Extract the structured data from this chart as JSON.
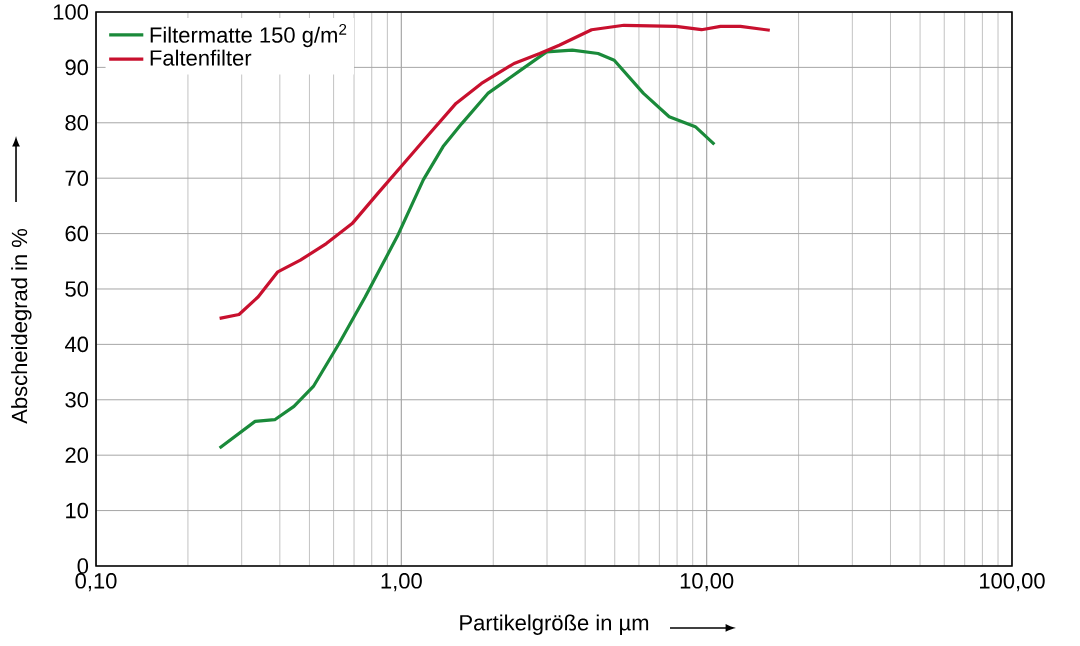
{
  "chart_data": {
    "type": "line",
    "xlabel": "Partikelgröße in µm",
    "ylabel": "Abscheidegrad in %",
    "log": "x",
    "grid": true,
    "legend": "top left",
    "line_style": "solid",
    "marker": "none",
    "xlim": [
      0.1,
      100
    ],
    "ylim": [
      0,
      100
    ],
    "xticks": [
      {
        "value": 0.1,
        "label": "0,10"
      },
      {
        "value": 1,
        "label": "1,00"
      },
      {
        "value": 10,
        "label": "10,00"
      },
      {
        "value": 100,
        "label": "100,00"
      }
    ],
    "yticks": [
      0,
      10,
      20,
      30,
      40,
      50,
      60,
      70,
      80,
      90,
      100
    ],
    "series": [
      {
        "name": "Filtermatte 150 g/m$^{2}$",
        "color": "#1a8a3a",
        "x": [
          0.254,
          0.332,
          0.385,
          0.445,
          0.515,
          0.626,
          0.762,
          0.97,
          1.18,
          1.37,
          1.58,
          1.92,
          2.46,
          2.99,
          3.63,
          4.41,
          4.98,
          6.21,
          7.54,
          9.18,
          10.6
        ],
        "values": [
          21.3,
          26.1,
          26.4,
          28.8,
          32.4,
          40.2,
          48.6,
          59.5,
          69.7,
          75.7,
          79.9,
          85.3,
          89.5,
          92.8,
          93.1,
          92.5,
          91.3,
          85.3,
          81.1,
          79.3,
          76.1
        ]
      },
      {
        "name": "Faltenfilter",
        "color": "#c8102e",
        "x": [
          0.254,
          0.294,
          0.34,
          0.394,
          0.467,
          0.568,
          0.69,
          0.839,
          1.02,
          1.24,
          1.51,
          1.83,
          2.34,
          2.84,
          3.29,
          4.2,
          5.36,
          7.93,
          9.62,
          11.1,
          12.9,
          16.1
        ],
        "values": [
          44.7,
          45.4,
          48.6,
          53.1,
          55.2,
          58.2,
          61.8,
          67.3,
          72.7,
          78.1,
          83.5,
          87.1,
          90.7,
          92.5,
          94.0,
          96.8,
          97.6,
          97.4,
          96.8,
          97.4,
          97.4,
          96.7
        ]
      }
    ]
  }
}
